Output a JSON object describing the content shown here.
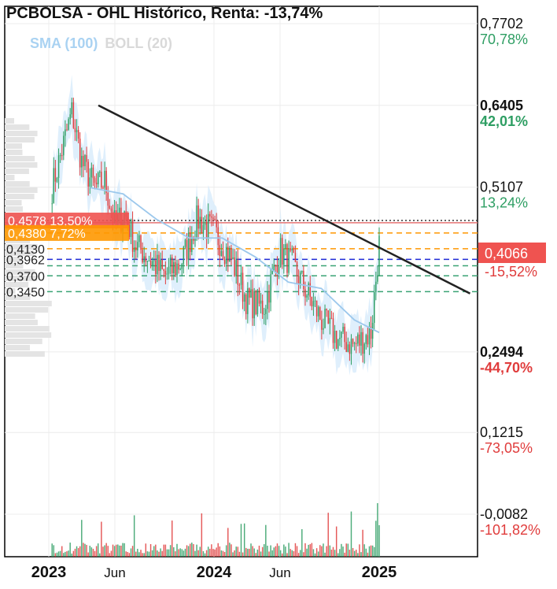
{
  "chart_data": {
    "type": "candlestick",
    "title": "PCBOLSA - OHL Histórico, Renta: -13,74%",
    "indicators": {
      "sma": "SMA (100)",
      "boll": "BOLL (20)"
    },
    "colors": {
      "up": "#2e9e63",
      "down": "#e03c3c",
      "sma": "#9cc8ec",
      "boll_fill": "#d9ecfb",
      "trend": "#222222"
    },
    "x_ticks": [
      {
        "label": "2023",
        "bold": true,
        "t": 0
      },
      {
        "label": "Jun",
        "bold": false,
        "t": 0.4
      },
      {
        "label": "2024",
        "bold": true,
        "t": 1
      },
      {
        "label": "Jun",
        "bold": false,
        "t": 1.4
      },
      {
        "label": "2025",
        "bold": true,
        "t": 2
      }
    ],
    "ylim": [
      -0.0082,
      0.7702
    ],
    "price_axis": [
      {
        "price": "0,7702",
        "pct": "70,78%",
        "bold": false,
        "pct_color": "#2e9e63"
      },
      {
        "price": "0,6405",
        "pct": "42,01%",
        "bold": true,
        "pct_color": "#2e9e63"
      },
      {
        "price": "0,5107",
        "pct": "13,24%",
        "bold": false,
        "pct_color": "#2e9e63"
      },
      {
        "price": "0,2494",
        "pct": "-44,70%",
        "bold": true,
        "pct_color": "#e03c3c"
      },
      {
        "price": "0,1215",
        "pct": "-73,05%",
        "bold": false,
        "pct_color": "#e03c3c"
      },
      {
        "price": "-0,0082",
        "pct": "-101,82%",
        "bold": false,
        "pct_color": "#e03c3c"
      }
    ],
    "current_price": {
      "value": "0,4066",
      "pct": "-15,52%"
    },
    "levels": [
      {
        "value": 0.4578,
        "label": "0,4578",
        "pct": "13,50%",
        "style": "dotted",
        "color": "#333333",
        "badge": "#ef5350"
      },
      {
        "value": 0.438,
        "label": "0,4380",
        "pct": "7,72%",
        "style": "dashed",
        "color": "#ff9800",
        "badge": "#ff9800"
      },
      {
        "value": 0.413,
        "label": "0,4130",
        "pct": "",
        "style": "dashed",
        "color": "#ff9800",
        "badge": ""
      },
      {
        "value": 0.3962,
        "label": "0,3962",
        "pct": "",
        "style": "dashed",
        "color": "#1e2bd6",
        "badge": ""
      },
      {
        "value": 0.386,
        "label": "",
        "pct": "",
        "style": "dashed",
        "color": "#3aa374",
        "badge": ""
      },
      {
        "value": 0.37,
        "label": "0,3700",
        "pct": "",
        "style": "dashed",
        "color": "#3aa374",
        "badge": ""
      },
      {
        "value": 0.345,
        "label": "0,3450",
        "pct": "",
        "style": "dashed",
        "color": "#3aa374",
        "badge": ""
      }
    ],
    "trendline": {
      "start": {
        "t": 0.3,
        "price": 0.6405
      },
      "end": {
        "t": 2.55,
        "price": 0.342
      }
    },
    "price_path": [
      {
        "t": 0.0,
        "price": 0.49
      },
      {
        "t": 0.07,
        "price": 0.56
      },
      {
        "t": 0.14,
        "price": 0.63
      },
      {
        "t": 0.2,
        "price": 0.55
      },
      {
        "t": 0.28,
        "price": 0.51
      },
      {
        "t": 0.34,
        "price": 0.52
      },
      {
        "t": 0.4,
        "price": 0.45
      },
      {
        "t": 0.46,
        "price": 0.47
      },
      {
        "t": 0.52,
        "price": 0.42
      },
      {
        "t": 0.6,
        "price": 0.4
      },
      {
        "t": 0.7,
        "price": 0.37
      },
      {
        "t": 0.8,
        "price": 0.39
      },
      {
        "t": 0.9,
        "price": 0.46
      },
      {
        "t": 1.0,
        "price": 0.44
      },
      {
        "t": 1.1,
        "price": 0.4
      },
      {
        "t": 1.2,
        "price": 0.33
      },
      {
        "t": 1.3,
        "price": 0.32
      },
      {
        "t": 1.4,
        "price": 0.41
      },
      {
        "t": 1.47,
        "price": 0.39
      },
      {
        "t": 1.55,
        "price": 0.35
      },
      {
        "t": 1.65,
        "price": 0.3
      },
      {
        "t": 1.75,
        "price": 0.27
      },
      {
        "t": 1.85,
        "price": 0.26
      },
      {
        "t": 1.95,
        "price": 0.28
      },
      {
        "t": 2.0,
        "price": 0.42
      }
    ],
    "sma_path": [
      {
        "t": 0.25,
        "price": 0.51
      },
      {
        "t": 0.45,
        "price": 0.5
      },
      {
        "t": 0.65,
        "price": 0.46
      },
      {
        "t": 0.85,
        "price": 0.43
      },
      {
        "t": 1.05,
        "price": 0.43
      },
      {
        "t": 1.25,
        "price": 0.4
      },
      {
        "t": 1.45,
        "price": 0.36
      },
      {
        "t": 1.65,
        "price": 0.35
      },
      {
        "t": 1.85,
        "price": 0.3
      },
      {
        "t": 2.0,
        "price": 0.28
      }
    ]
  }
}
